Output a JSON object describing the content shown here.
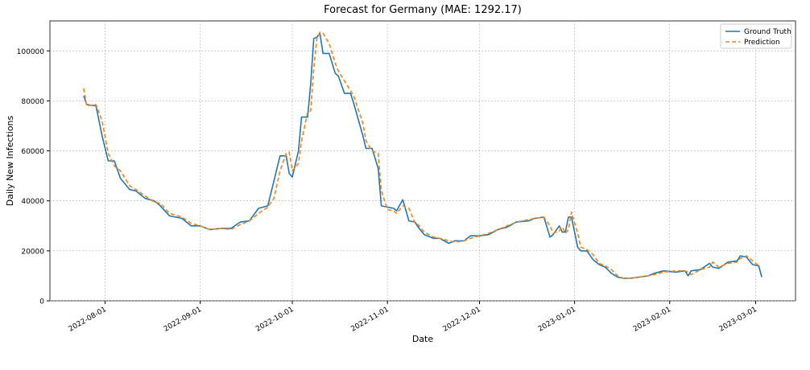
{
  "chart_data": {
    "type": "line",
    "title": "Forecast for Germany (MAE: 1292.17)",
    "x_label": "Date",
    "y_label": "Daily New Infections",
    "x": [
      "2022-07-25",
      "2022-07-26",
      "2022-07-29",
      "2022-07-31",
      "2022-08-02",
      "2022-08-04",
      "2022-08-06",
      "2022-08-09",
      "2022-08-11",
      "2022-08-14",
      "2022-08-17",
      "2022-08-19",
      "2022-08-22",
      "2022-08-26",
      "2022-08-29",
      "2022-09-01",
      "2022-09-04",
      "2022-09-08",
      "2022-09-11",
      "2022-09-14",
      "2022-09-17",
      "2022-09-20",
      "2022-09-23",
      "2022-09-25",
      "2022-09-27",
      "2022-09-29",
      "2022-09-30",
      "2022-10-01",
      "2022-10-03",
      "2022-10-04",
      "2022-10-06",
      "2022-10-07",
      "2022-10-08",
      "2022-10-09",
      "2022-10-10",
      "2022-10-11",
      "2022-10-13",
      "2022-10-15",
      "2022-10-16",
      "2022-10-18",
      "2022-10-20",
      "2022-10-21",
      "2022-10-24",
      "2022-10-25",
      "2022-10-27",
      "2022-10-29",
      "2022-10-30",
      "2022-11-01",
      "2022-11-03",
      "2022-11-04",
      "2022-11-06",
      "2022-11-08",
      "2022-11-10",
      "2022-11-11",
      "2022-11-13",
      "2022-11-16",
      "2022-11-18",
      "2022-11-21",
      "2022-11-23",
      "2022-11-26",
      "2022-11-28",
      "2022-12-01",
      "2022-12-04",
      "2022-12-07",
      "2022-12-10",
      "2022-12-13",
      "2022-12-17",
      "2022-12-19",
      "2022-12-22",
      "2022-12-24",
      "2022-12-25",
      "2022-12-27",
      "2022-12-28",
      "2022-12-29",
      "2022-12-30",
      "2022-12-31",
      "2023-01-02",
      "2023-01-03",
      "2023-01-05",
      "2023-01-07",
      "2023-01-09",
      "2023-01-11",
      "2023-01-13",
      "2023-01-15",
      "2023-01-17",
      "2023-01-19",
      "2023-01-22",
      "2023-01-25",
      "2023-01-27",
      "2023-01-30",
      "2023-02-03",
      "2023-02-06",
      "2023-02-07",
      "2023-02-08",
      "2023-02-11",
      "2023-02-14",
      "2023-02-15",
      "2023-02-17",
      "2023-02-20",
      "2023-02-23",
      "2023-02-24",
      "2023-02-26",
      "2023-02-28",
      "2023-03-02",
      "2023-03-03"
    ],
    "series": [
      {
        "name": "Ground Truth",
        "color": "#1f77b4",
        "dashed": false,
        "values": [
          82000,
          78500,
          78000,
          66000,
          56000,
          56000,
          49000,
          44500,
          44000,
          41000,
          40000,
          38000,
          34000,
          33000,
          30000,
          30000,
          28500,
          29000,
          29000,
          31500,
          32000,
          37000,
          38000,
          48000,
          58000,
          58000,
          51000,
          49500,
          60000,
          73500,
          73500,
          87000,
          105000,
          105500,
          107000,
          99000,
          99000,
          91000,
          90000,
          83000,
          83000,
          79000,
          66000,
          61000,
          61000,
          53000,
          38000,
          37500,
          37000,
          36000,
          40500,
          32000,
          31500,
          29500,
          26500,
          25000,
          25000,
          23000,
          24000,
          24000,
          26000,
          26000,
          26500,
          28500,
          29500,
          31500,
          32000,
          33000,
          33500,
          25500,
          26500,
          30000,
          27500,
          27500,
          33500,
          33500,
          21500,
          20000,
          20000,
          16500,
          14500,
          13500,
          11000,
          9500,
          9000,
          9000,
          9500,
          10000,
          11000,
          12000,
          11500,
          12000,
          10000,
          12000,
          12500,
          15000,
          13500,
          13000,
          15500,
          16000,
          18000,
          17500,
          14500,
          14000,
          9500
        ]
      },
      {
        "name": "Prediction",
        "color": "#ff7f0e",
        "dashed": true,
        "values": [
          85000,
          78000,
          78500,
          72000,
          59000,
          54000,
          52000,
          46000,
          44500,
          42000,
          39500,
          39000,
          35000,
          33500,
          31000,
          30000,
          28500,
          29000,
          28500,
          30500,
          32000,
          35000,
          37500,
          41000,
          52000,
          59000,
          59500,
          52000,
          55000,
          64000,
          75500,
          76000,
          93000,
          105000,
          107500,
          107000,
          103000,
          95000,
          92000,
          88000,
          84000,
          82000,
          71000,
          64000,
          60000,
          59000,
          44000,
          36500,
          36000,
          35000,
          38000,
          37000,
          31000,
          30500,
          27500,
          25500,
          25000,
          24000,
          23500,
          24000,
          25000,
          26000,
          27000,
          28500,
          30000,
          31500,
          32500,
          33000,
          33500,
          30000,
          27000,
          28000,
          29500,
          27000,
          28500,
          35500,
          27000,
          21500,
          20500,
          18500,
          15000,
          14000,
          12500,
          10000,
          9000,
          9000,
          9500,
          10000,
          10500,
          11500,
          12000,
          12000,
          11500,
          10500,
          12500,
          13500,
          15500,
          13500,
          15000,
          15500,
          17000,
          18000,
          16000,
          14000,
          null
        ]
      }
    ],
    "xlim": [
      "2022-07-14",
      "2023-03-14"
    ],
    "xticks": [
      "2022-08-01",
      "2022-09-01",
      "2022-10-01",
      "2022-11-01",
      "2022-12-01",
      "2023-01-01",
      "2023-02-01",
      "2023-03-01"
    ],
    "ylim": [
      0,
      112000
    ],
    "yticks": [
      0,
      20000,
      40000,
      60000,
      80000,
      100000
    ],
    "grid": true,
    "legend": "upper right"
  }
}
